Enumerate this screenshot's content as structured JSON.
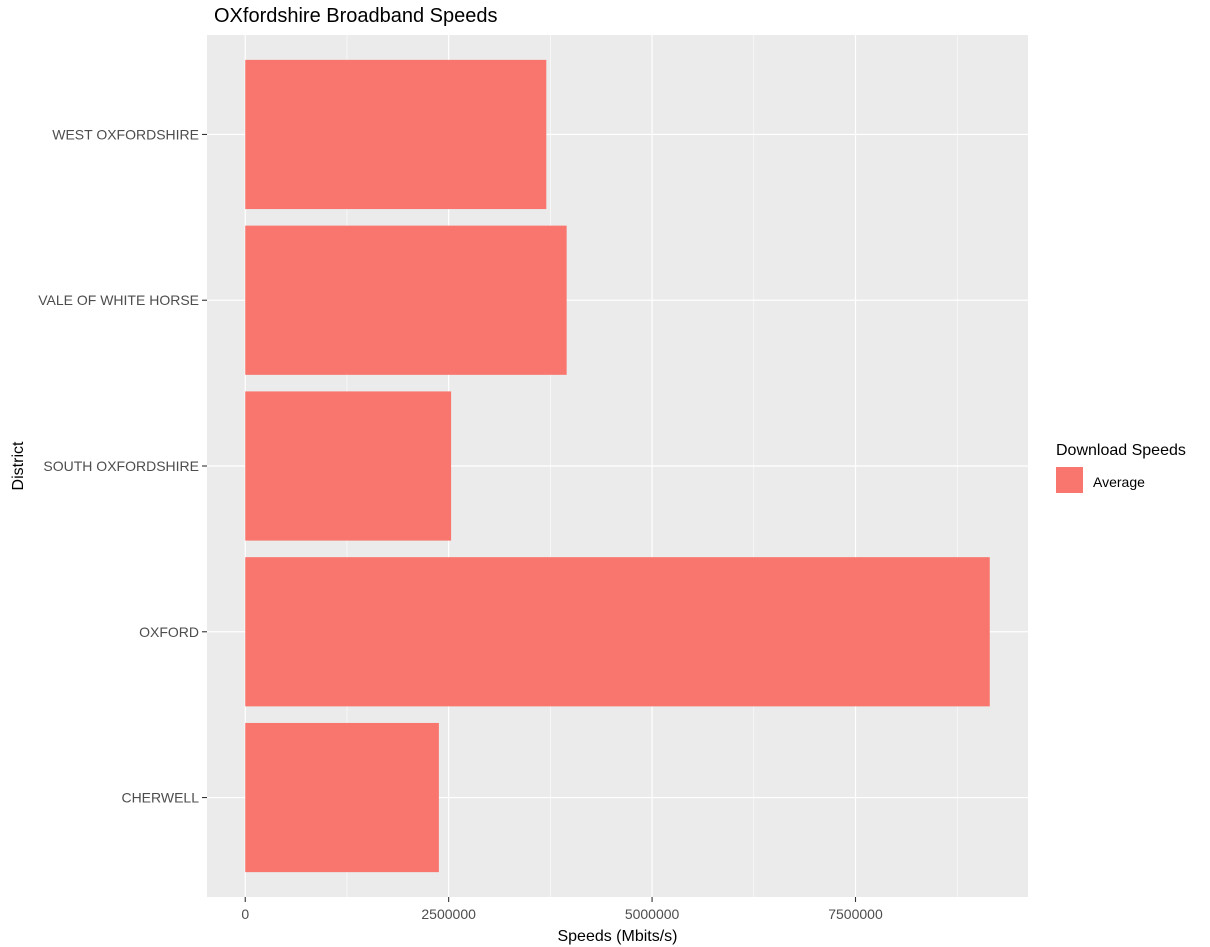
{
  "chart_data": {
    "type": "bar",
    "orientation": "horizontal",
    "title": "OXfordshire Broadband Speeds",
    "xlabel": "Speeds (Mbits/s)",
    "ylabel": "District",
    "categories": [
      "CHERWELL",
      "OXFORD",
      "SOUTH OXFORDSHIRE",
      "VALE OF WHITE HORSE",
      "WEST OXFORDSHIRE"
    ],
    "series": [
      {
        "name": "Average",
        "values": [
          2380000,
          9150000,
          2530000,
          3950000,
          3700000
        ],
        "color": "#F8766D"
      }
    ],
    "xlim": [
      -470000,
      9620000
    ],
    "xticks": [
      0,
      2500000,
      5000000,
      7500000
    ],
    "xtick_labels": [
      "0",
      "2500000",
      "5000000",
      "7500000"
    ],
    "grid": true,
    "panel_background": "#EBEBEB",
    "grid_color": "#FFFFFF",
    "legend": {
      "title": "Download Speeds",
      "position": "right",
      "entries": [
        "Average"
      ]
    }
  }
}
